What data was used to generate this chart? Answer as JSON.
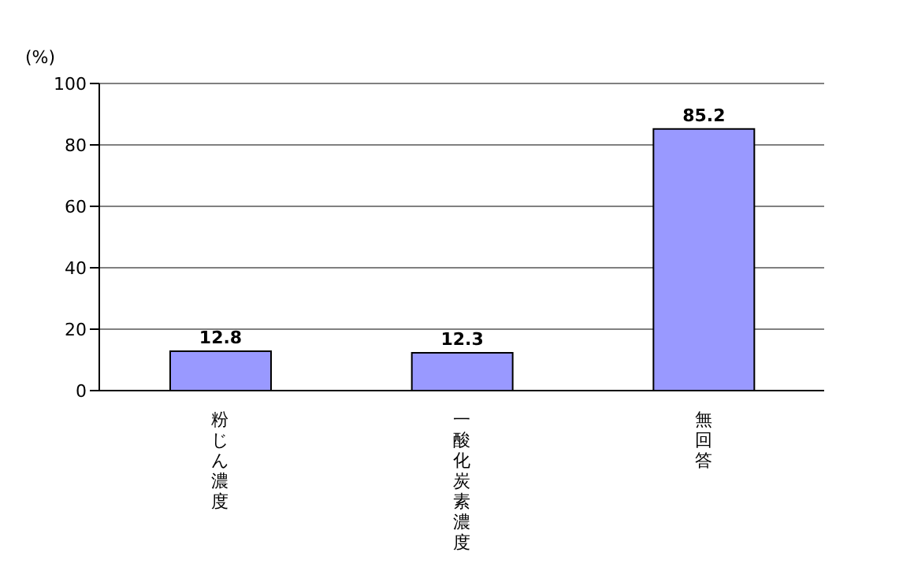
{
  "chart_data": {
    "type": "bar",
    "ylabel": "(%)",
    "categories": [
      "粉じん濃度",
      "一酸化炭素濃度",
      "無回答"
    ],
    "values": [
      12.8,
      12.3,
      85.2
    ],
    "color": "#9999ff",
    "ylim": [
      0,
      100
    ],
    "yticks": [
      0,
      20,
      40,
      60,
      80,
      100
    ],
    "grid": "y",
    "data_labels": true
  }
}
